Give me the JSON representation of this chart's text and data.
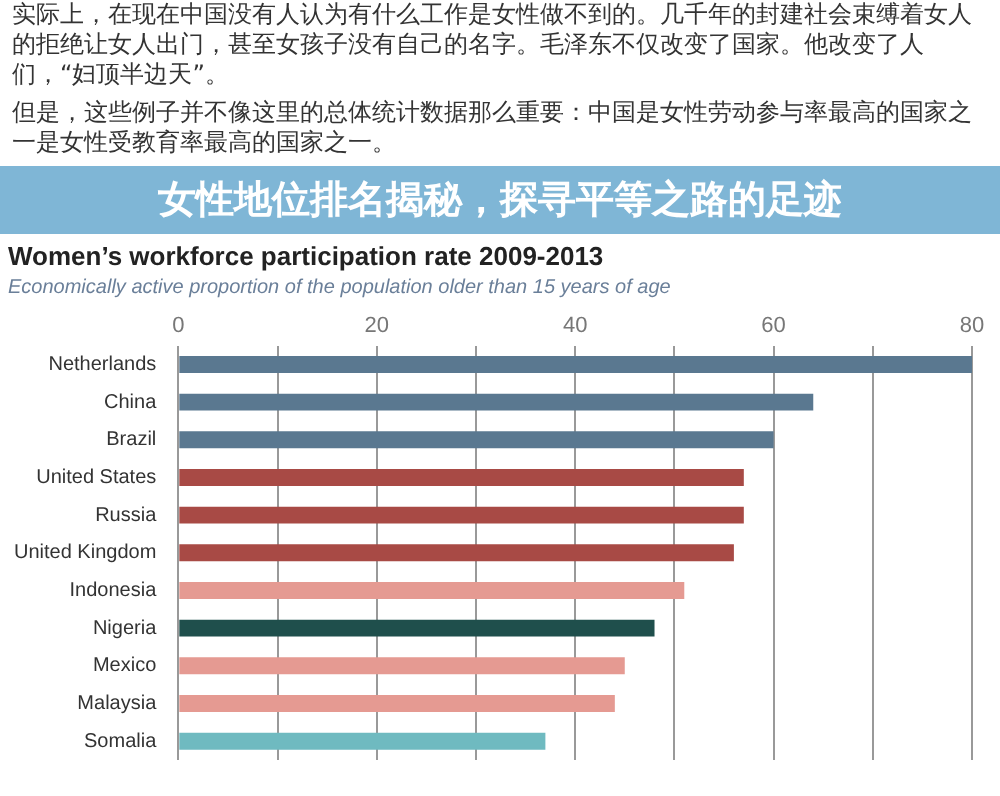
{
  "chart_data": {
    "type": "bar",
    "orientation": "horizontal",
    "title": "Women’s workforce participation rate 2009-2013",
    "subtitle": "Economically active proportion of the population older than 15 years of age",
    "annotations": [
      "实际上，在现在中国没有人认为有什么工作是女性做不到的。几千年的封建社会束缚着女人的拒绝让女人出门，甚至女孩子没有自己的名字。毛泽东不仅改变了国家。他改变了人们，“妇顶半边天”。",
      "但是，这些例子并不像这里的总体统计数据那么重要：中国是女性劳动参与率最高的国家之一是女性受教育率最高的国家之一。",
      "女性地位排名揭秘，探寻平等之路的足迹"
    ],
    "categories": [
      "Netherlands",
      "China",
      "Brazil",
      "United States",
      "Russia",
      "United Kingdom",
      "Indonesia",
      "Nigeria",
      "Mexico",
      "Malaysia",
      "Somalia"
    ],
    "values": [
      80,
      64,
      60,
      57,
      57,
      56,
      51,
      48,
      45,
      44,
      37
    ],
    "colors": [
      "#5a7890",
      "#5a7890",
      "#5a7890",
      "#a84a45",
      "#a84a45",
      "#a84a45",
      "#e59a92",
      "#1f4f4c",
      "#e59a92",
      "#e59a92",
      "#6fbac0"
    ],
    "xlim": [
      0,
      80
    ],
    "xticks": [
      0,
      {
        "value": 10,
        "label": null
      },
      20,
      {
        "value": 30,
        "label": null
      },
      40,
      {
        "value": 50,
        "label": null
      },
      60,
      {
        "value": 70,
        "label": null
      },
      80
    ],
    "grid": "x"
  }
}
